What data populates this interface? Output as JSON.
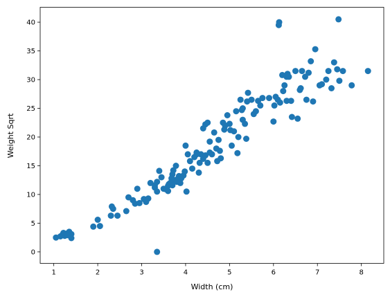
{
  "chart_data": {
    "type": "scatter",
    "title": "",
    "xlabel": "Width (cm)",
    "ylabel": "Weight Sqrt",
    "xlim": [
      0.69,
      8.51
    ],
    "ylim": [
      -2.0,
      42.6
    ],
    "xticks": [
      1,
      2,
      3,
      4,
      5,
      6,
      7,
      8
    ],
    "yticks": [
      0,
      5,
      10,
      15,
      20,
      25,
      30,
      35,
      40
    ],
    "grid": false,
    "legend": "none",
    "marker_color": "#1f77b4",
    "points": [
      [
        1.05,
        2.5
      ],
      [
        1.15,
        2.7
      ],
      [
        1.2,
        3.0
      ],
      [
        1.25,
        2.8
      ],
      [
        1.3,
        3.2
      ],
      [
        1.35,
        3.5
      ],
      [
        1.4,
        3.1
      ],
      [
        1.4,
        2.4
      ],
      [
        1.32,
        2.9
      ],
      [
        1.22,
        3.3
      ],
      [
        1.9,
        4.4
      ],
      [
        2.0,
        5.6
      ],
      [
        2.05,
        4.5
      ],
      [
        2.3,
        6.3
      ],
      [
        2.35,
        7.5
      ],
      [
        2.32,
        7.9
      ],
      [
        2.45,
        6.3
      ],
      [
        2.65,
        7.1
      ],
      [
        2.7,
        9.5
      ],
      [
        2.8,
        9.0
      ],
      [
        2.85,
        8.4
      ],
      [
        2.9,
        11.0
      ],
      [
        2.95,
        8.5
      ],
      [
        3.05,
        9.2
      ],
      [
        3.1,
        8.7
      ],
      [
        3.15,
        9.3
      ],
      [
        3.2,
        12.0
      ],
      [
        3.3,
        11.2
      ],
      [
        3.35,
        10.5
      ],
      [
        3.35,
        12.2
      ],
      [
        3.4,
        14.1
      ],
      [
        3.45,
        13.0
      ],
      [
        3.5,
        11.0
      ],
      [
        3.55,
        10.9
      ],
      [
        3.6,
        11.5
      ],
      [
        3.62,
        11.8
      ],
      [
        3.65,
        12.0
      ],
      [
        3.7,
        13.5
      ],
      [
        3.72,
        14.2
      ],
      [
        3.75,
        12.5
      ],
      [
        3.78,
        15.0
      ],
      [
        3.8,
        12.2
      ],
      [
        3.85,
        13.2
      ],
      [
        3.9,
        12.8
      ],
      [
        3.95,
        13.3
      ],
      [
        3.6,
        10.6
      ],
      [
        3.7,
        11.6
      ],
      [
        3.8,
        12.6
      ],
      [
        3.88,
        12.0
      ],
      [
        3.3,
        11.6
      ],
      [
        3.35,
        0.0
      ],
      [
        4.0,
        18.5
      ],
      [
        4.02,
        10.5
      ],
      [
        4.05,
        17.0
      ],
      [
        4.1,
        15.8
      ],
      [
        4.15,
        14.5
      ],
      [
        4.2,
        16.5
      ],
      [
        4.25,
        17.3
      ],
      [
        4.3,
        13.8
      ],
      [
        4.32,
        15.5
      ],
      [
        4.35,
        17.0
      ],
      [
        4.4,
        16.2
      ],
      [
        4.45,
        16.8
      ],
      [
        4.5,
        15.5
      ],
      [
        4.55,
        17.3
      ],
      [
        4.4,
        21.5
      ],
      [
        4.45,
        22.2
      ],
      [
        4.5,
        22.5
      ],
      [
        4.55,
        19.2
      ],
      [
        4.6,
        17.0
      ],
      [
        4.65,
        20.8
      ],
      [
        4.7,
        18.0
      ],
      [
        4.72,
        15.8
      ],
      [
        4.75,
        19.5
      ],
      [
        4.78,
        17.6
      ],
      [
        4.8,
        16.3
      ],
      [
        4.85,
        22.5
      ],
      [
        4.88,
        21.3
      ],
      [
        4.9,
        22.0
      ],
      [
        4.95,
        23.8
      ],
      [
        5.0,
        22.3
      ],
      [
        5.02,
        21.2
      ],
      [
        5.05,
        18.5
      ],
      [
        5.1,
        21.0
      ],
      [
        5.15,
        24.5
      ],
      [
        5.18,
        17.2
      ],
      [
        5.2,
        20.0
      ],
      [
        5.25,
        26.5
      ],
      [
        5.3,
        23.0
      ],
      [
        5.3,
        25.0
      ],
      [
        5.35,
        22.3
      ],
      [
        5.38,
        19.7
      ],
      [
        5.4,
        26.2
      ],
      [
        5.42,
        27.7
      ],
      [
        5.5,
        26.5
      ],
      [
        5.55,
        24.0
      ],
      [
        5.6,
        24.5
      ],
      [
        5.65,
        26.3
      ],
      [
        5.7,
        25.5
      ],
      [
        5.75,
        26.8
      ],
      [
        5.9,
        26.8
      ],
      [
        6.0,
        22.7
      ],
      [
        6.02,
        25.5
      ],
      [
        6.05,
        27.0
      ],
      [
        6.1,
        26.5
      ],
      [
        6.12,
        39.5
      ],
      [
        6.13,
        40.0
      ],
      [
        6.2,
        30.8
      ],
      [
        6.22,
        28.0
      ],
      [
        6.25,
        29.0
      ],
      [
        6.3,
        30.5
      ],
      [
        6.32,
        31.0
      ],
      [
        6.35,
        30.5
      ],
      [
        6.4,
        26.3
      ],
      [
        6.42,
        23.5
      ],
      [
        6.5,
        31.5
      ],
      [
        6.55,
        23.2
      ],
      [
        6.6,
        28.2
      ],
      [
        6.62,
        28.5
      ],
      [
        6.65,
        31.5
      ],
      [
        6.72,
        30.5
      ],
      [
        6.75,
        26.5
      ],
      [
        6.8,
        31.2
      ],
      [
        6.85,
        33.2
      ],
      [
        6.9,
        26.2
      ],
      [
        6.95,
        35.3
      ],
      [
        7.05,
        29.0
      ],
      [
        7.1,
        29.2
      ],
      [
        7.2,
        30.0
      ],
      [
        7.25,
        31.5
      ],
      [
        7.32,
        28.5
      ],
      [
        7.38,
        33.0
      ],
      [
        7.45,
        31.8
      ],
      [
        7.48,
        40.5
      ],
      [
        7.5,
        29.8
      ],
      [
        7.58,
        31.5
      ],
      [
        7.78,
        29.0
      ],
      [
        8.15,
        31.5
      ],
      [
        6.15,
        26.0
      ],
      [
        6.3,
        26.3
      ],
      [
        5.28,
        24.7
      ],
      [
        4.9,
        22.0
      ],
      [
        4.25,
        17.0
      ],
      [
        3.98,
        14.0
      ],
      [
        3.68,
        12.8
      ]
    ]
  }
}
